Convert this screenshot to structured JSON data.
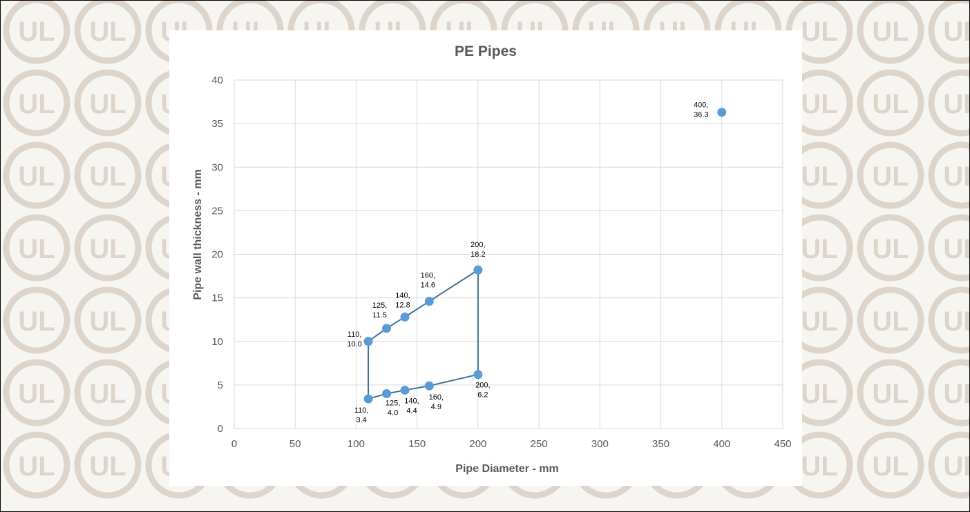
{
  "watermark": {
    "logo_text": "UL",
    "icon": "ul-logo-icon"
  },
  "chart_data": {
    "type": "scatter",
    "title": "PE Pipes",
    "xlabel": "Pipe Diameter - mm",
    "ylabel": "Pipe wall thickness - mm",
    "xlim": [
      0,
      450
    ],
    "ylim": [
      0,
      40
    ],
    "x_ticks": [
      0,
      50,
      100,
      150,
      200,
      250,
      300,
      350,
      400,
      450
    ],
    "y_ticks": [
      0,
      5,
      10,
      15,
      20,
      25,
      30,
      35,
      40
    ],
    "grid": true,
    "legend": "none",
    "marker_color": "#5b9bd5",
    "line_color": "#41719c",
    "points": [
      {
        "x": 110,
        "y": 10.0,
        "label": [
          "110,",
          "10.0"
        ]
      },
      {
        "x": 125,
        "y": 11.5,
        "label": [
          "125,",
          "11.5"
        ]
      },
      {
        "x": 140,
        "y": 12.8,
        "label": [
          "140,",
          "12.8"
        ]
      },
      {
        "x": 160,
        "y": 14.6,
        "label": [
          "160,",
          "14.6"
        ]
      },
      {
        "x": 200,
        "y": 18.2,
        "label": [
          "200,",
          "18.2"
        ]
      },
      {
        "x": 200,
        "y": 6.2,
        "label": [
          "200,",
          "6.2"
        ]
      },
      {
        "x": 160,
        "y": 4.9,
        "label": [
          "160,",
          "4.9"
        ]
      },
      {
        "x": 140,
        "y": 4.4,
        "label": [
          "140,",
          "4.4"
        ]
      },
      {
        "x": 125,
        "y": 4.0,
        "label": [
          "125,",
          "4.0"
        ]
      },
      {
        "x": 110,
        "y": 3.4,
        "label": [
          "110,",
          "3.4"
        ]
      },
      {
        "x": 400,
        "y": 36.3,
        "label": [
          "400,",
          "36.3"
        ]
      }
    ],
    "connected_path": [
      {
        "x": 110,
        "y": 3.4
      },
      {
        "x": 110,
        "y": 10.0
      },
      {
        "x": 125,
        "y": 11.5
      },
      {
        "x": 140,
        "y": 12.8
      },
      {
        "x": 160,
        "y": 14.6
      },
      {
        "x": 200,
        "y": 18.2
      },
      {
        "x": 200,
        "y": 6.2
      },
      {
        "x": 160,
        "y": 4.9
      },
      {
        "x": 140,
        "y": 4.4
      },
      {
        "x": 125,
        "y": 4.0
      },
      {
        "x": 110,
        "y": 3.4
      }
    ]
  }
}
